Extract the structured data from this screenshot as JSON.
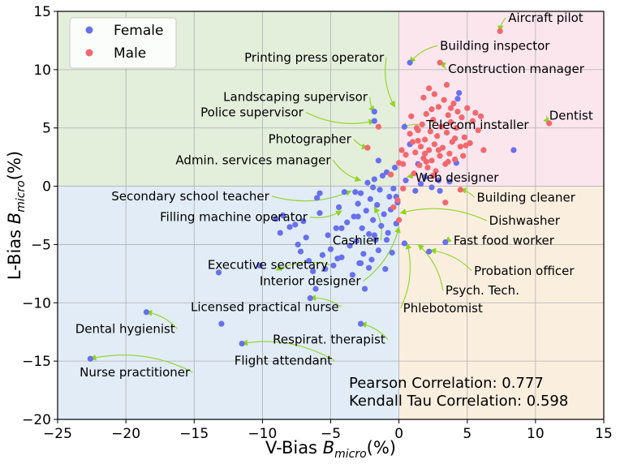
{
  "chart_data": {
    "type": "scatter",
    "xlabel": {
      "prefix": "V-Bias  ",
      "sym": "B",
      "sub": "micro",
      "suffix": "(%)"
    },
    "ylabel": {
      "prefix": "L-Bias  ",
      "sym": "B",
      "sub": "micro",
      "suffix": "(%)"
    },
    "xlim": [
      -25,
      15
    ],
    "ylim": [
      -20,
      15
    ],
    "xticks": [
      -25,
      -20,
      -15,
      -10,
      -5,
      0,
      5,
      10,
      15
    ],
    "yticks": [
      -20,
      -15,
      -10,
      -5,
      0,
      5,
      10,
      15
    ],
    "xtick_labels": [
      "−25",
      "−20",
      "−15",
      "−10",
      "−5",
      "0",
      "5",
      "10",
      "15"
    ],
    "ytick_labels": [
      "−20",
      "−15",
      "−10",
      "−5",
      "0",
      "5",
      "10",
      "15"
    ],
    "grid": true,
    "legend_position": "top-left",
    "quadrants": [
      {
        "x": [
          -25,
          0
        ],
        "y": [
          0,
          15
        ],
        "color": "#e3eedb"
      },
      {
        "x": [
          0,
          15
        ],
        "y": [
          0,
          15
        ],
        "color": "#fbe6ee"
      },
      {
        "x": [
          -25,
          0
        ],
        "y": [
          -20,
          0
        ],
        "color": "#e1ecf7"
      },
      {
        "x": [
          0,
          15
        ],
        "y": [
          -20,
          0
        ],
        "color": "#faeedf"
      }
    ],
    "stats": [
      "Pearson Correlation: 0.777",
      "Kendall Tau Correlation: 0.598"
    ],
    "series": [
      {
        "name": "Female",
        "color": "#6870ec",
        "points": [
          [
            -22.6,
            -14.8
          ],
          [
            -18.5,
            -10.8
          ],
          [
            -13.0,
            -11.8
          ],
          [
            -13.2,
            -7.4
          ],
          [
            -11.5,
            -13.5
          ],
          [
            -10.2,
            -6.8
          ],
          [
            -9.0,
            -2.8
          ],
          [
            -8.7,
            -4.0
          ],
          [
            -8.5,
            -2.5
          ],
          [
            -8.0,
            -3.5
          ],
          [
            -7.6,
            -3.3
          ],
          [
            -7.4,
            -5.0
          ],
          [
            -7.2,
            -5.6
          ],
          [
            -7.0,
            -3.0
          ],
          [
            -6.8,
            -4.4
          ],
          [
            -6.6,
            -6.4
          ],
          [
            -6.3,
            -7.3
          ],
          [
            -6.1,
            -8.8
          ],
          [
            -6.0,
            -1.0
          ],
          [
            -5.8,
            -2.3
          ],
          [
            -5.6,
            -5.9
          ],
          [
            -5.4,
            -7.1
          ],
          [
            -5.2,
            -4.2
          ],
          [
            -5.0,
            -5.4
          ],
          [
            -4.8,
            -6.8
          ],
          [
            -4.6,
            -3.6
          ],
          [
            -4.4,
            -1.8
          ],
          [
            -4.2,
            -6.1
          ],
          [
            -4.0,
            -0.5
          ],
          [
            -3.8,
            -3.1
          ],
          [
            -3.6,
            -5.1
          ],
          [
            -3.4,
            -7.6
          ],
          [
            -3.3,
            -2.6
          ],
          [
            -3.1,
            -4.7
          ],
          [
            -3.0,
            -1.5
          ],
          [
            -2.9,
            -6.6
          ],
          [
            -2.8,
            -0.6
          ],
          [
            -2.7,
            -3.6
          ],
          [
            -2.6,
            -5.8
          ],
          [
            -2.5,
            -8.8
          ],
          [
            -2.4,
            -2.1
          ],
          [
            -2.3,
            0.3
          ],
          [
            -2.2,
            -4.1
          ],
          [
            -2.1,
            -1.1
          ],
          [
            -2.0,
            -6.3
          ],
          [
            -1.9,
            -2.9
          ],
          [
            -1.8,
            0.6
          ],
          [
            -1.7,
            -4.6
          ],
          [
            -1.6,
            -1.6
          ],
          [
            -1.5,
            -5.5
          ],
          [
            -1.4,
            -0.3
          ],
          [
            -1.3,
            -3.4
          ],
          [
            -1.2,
            0.9
          ],
          [
            -1.1,
            -2.4
          ],
          [
            -1.0,
            -7.1
          ],
          [
            -0.9,
            1.2
          ],
          [
            -0.8,
            -4.0
          ],
          [
            -0.7,
            -0.9
          ],
          [
            -0.6,
            -2.0
          ],
          [
            -0.5,
            -5.7
          ],
          [
            -0.4,
            -0.2
          ],
          [
            -0.3,
            1.6
          ],
          [
            -0.2,
            -3.2
          ],
          [
            -0.1,
            -1.4
          ],
          [
            -6.5,
            -9.6
          ],
          [
            -2.8,
            -11.8
          ],
          [
            -3.2,
            -0.5
          ],
          [
            -5.8,
            -0.6
          ],
          [
            -2.8,
            -6.6
          ],
          [
            -4.2,
            -3.6
          ],
          [
            -3.0,
            -2.6
          ],
          [
            -1.8,
            -4.2
          ],
          [
            -4.5,
            -6.2
          ],
          [
            -0.9,
            -4.6
          ],
          [
            -1.9,
            -0.1
          ],
          [
            -2.2,
            -7.0
          ],
          [
            -1.5,
            2.2
          ],
          [
            -0.2,
            -0.9
          ],
          [
            0.8,
            10.6
          ],
          [
            -1.8,
            6.4
          ],
          [
            -1.8,
            5.6
          ],
          [
            0.4,
            -4.9
          ],
          [
            0.5,
            0.5
          ],
          [
            1.2,
            -0.4
          ],
          [
            1.6,
            0.2
          ],
          [
            1.9,
            0.8
          ],
          [
            2.4,
            -0.1
          ],
          [
            2.2,
            -5.6
          ],
          [
            3.4,
            -4.8
          ],
          [
            3.7,
            0.4
          ],
          [
            4.2,
            2.0
          ],
          [
            4.4,
            8.0
          ],
          [
            4.3,
            7.5
          ],
          [
            8.4,
            3.1
          ],
          [
            0.8,
            3.6
          ],
          [
            0.4,
            5.1
          ],
          [
            1.4,
            1.9
          ],
          [
            3.0,
            -0.4
          ],
          [
            2.9,
            0.5
          ]
        ]
      },
      {
        "name": "Male",
        "color": "#f2686e",
        "points": [
          [
            7.4,
            13.3
          ],
          [
            3.0,
            10.6
          ],
          [
            11.0,
            5.4
          ],
          [
            -2.3,
            3.3
          ],
          [
            -1.5,
            5.1
          ],
          [
            0.2,
            3.1
          ],
          [
            0.5,
            2.7
          ],
          [
            0.8,
            4.5
          ],
          [
            1.0,
            3.8
          ],
          [
            1.2,
            2.9
          ],
          [
            1.4,
            4.8
          ],
          [
            1.5,
            1.8
          ],
          [
            1.6,
            3.4
          ],
          [
            1.7,
            5.3
          ],
          [
            1.8,
            2.4
          ],
          [
            1.9,
            4.0
          ],
          [
            2.0,
            6.2
          ],
          [
            2.1,
            1.6
          ],
          [
            2.2,
            3.1
          ],
          [
            2.3,
            4.7
          ],
          [
            2.4,
            2.2
          ],
          [
            2.5,
            5.7
          ],
          [
            2.6,
            3.6
          ],
          [
            2.7,
            1.3
          ],
          [
            2.8,
            4.3
          ],
          [
            2.9,
            6.8
          ],
          [
            3.0,
            2.6
          ],
          [
            3.1,
            5.1
          ],
          [
            3.2,
            3.3
          ],
          [
            3.3,
            7.4
          ],
          [
            3.4,
            1.9
          ],
          [
            3.5,
            4.6
          ],
          [
            3.6,
            6.1
          ],
          [
            3.7,
            2.8
          ],
          [
            3.8,
            5.5
          ],
          [
            3.9,
            3.8
          ],
          [
            4.0,
            7.1
          ],
          [
            4.1,
            2.3
          ],
          [
            4.2,
            5.0
          ],
          [
            4.3,
            6.4
          ],
          [
            4.5,
            3.4
          ],
          [
            4.6,
            5.9
          ],
          [
            4.8,
            4.2
          ],
          [
            5.0,
            6.7
          ],
          [
            5.2,
            3.7
          ],
          [
            5.4,
            5.6
          ],
          [
            5.6,
            6.3
          ],
          [
            5.8,
            4.8
          ],
          [
            6.0,
            6.0
          ],
          [
            6.2,
            3.1
          ],
          [
            4.5,
            -0.3
          ],
          [
            3.4,
            -1.4
          ],
          [
            0.0,
            -2.9
          ],
          [
            -0.4,
            -1.8
          ],
          [
            1.8,
            7.6
          ],
          [
            2.6,
            7.9
          ],
          [
            3.8,
            6.7
          ],
          [
            1.1,
            1.1
          ],
          [
            1.9,
            2.8
          ],
          [
            2.5,
            0.9
          ],
          [
            0.3,
            1.9
          ],
          [
            0.9,
            6.0
          ],
          [
            1.3,
            5.0
          ],
          [
            2.2,
            8.4
          ],
          [
            3.5,
            8.7
          ],
          [
            1.4,
            3.9
          ],
          [
            2.0,
            2.1
          ],
          [
            2.9,
            3.1
          ],
          [
            3.6,
            2.1
          ],
          [
            4.7,
            2.6
          ],
          [
            2.4,
            6.6
          ],
          [
            -0.6,
            1.0
          ],
          [
            -0.1,
            -1.2
          ],
          [
            0.3,
            -0.2
          ],
          [
            0.0,
            2.0
          ],
          [
            4.9,
            3.5
          ],
          [
            4.1,
            4.1
          ]
        ]
      }
    ],
    "annotations": [
      {
        "text": "Aircraft pilot",
        "point": [
          7.4,
          13.3
        ],
        "text_pos": [
          8.0,
          14.1
        ],
        "anchor": "start"
      },
      {
        "text": "Building inspector",
        "point": [
          0.8,
          10.6
        ],
        "text_pos": [
          3.0,
          11.7
        ],
        "anchor": "start"
      },
      {
        "text": "Construction manager",
        "point": [
          3.0,
          10.6
        ],
        "text_pos": [
          3.6,
          9.7
        ],
        "anchor": "start"
      },
      {
        "text": "Printing press operator",
        "point": [
          -0.3,
          6.8
        ],
        "text_pos": [
          -1.1,
          10.7
        ],
        "anchor": "end"
      },
      {
        "text": "Landscaping supervisor",
        "point": [
          -1.8,
          6.4
        ],
        "text_pos": [
          -2.3,
          7.3
        ],
        "anchor": "end"
      },
      {
        "text": "Police supervisor",
        "point": [
          -1.8,
          5.6
        ],
        "text_pos": [
          -7.0,
          6.0
        ],
        "anchor": "end"
      },
      {
        "text": "Dentist",
        "point": [
          11.0,
          5.4
        ],
        "text_pos": [
          11.0,
          5.7
        ],
        "anchor": "start"
      },
      {
        "text": "Telecom installer",
        "point": [
          0.2,
          5.0
        ],
        "text_pos": [
          2.0,
          4.9
        ],
        "anchor": "start"
      },
      {
        "text": "Photographer",
        "point": [
          -2.3,
          3.3
        ],
        "text_pos": [
          -3.5,
          3.7
        ],
        "anchor": "end"
      },
      {
        "text": "Admin. services manager",
        "point": [
          -2.8,
          0.5
        ],
        "text_pos": [
          -5.0,
          1.9
        ],
        "anchor": "end"
      },
      {
        "text": "Web designer",
        "point": [
          0.6,
          0.8
        ],
        "text_pos": [
          1.2,
          0.4
        ],
        "anchor": "start"
      },
      {
        "text": "Secondary school teacher",
        "point": [
          -3.5,
          -0.4
        ],
        "text_pos": [
          -9.5,
          -1.2
        ],
        "anchor": "end"
      },
      {
        "text": "Building cleaner",
        "point": [
          4.5,
          -0.3
        ],
        "text_pos": [
          5.7,
          -1.3
        ],
        "anchor": "start"
      },
      {
        "text": "Filling machine operator",
        "point": [
          -4.2,
          -2.1
        ],
        "text_pos": [
          -6.7,
          -3.0
        ],
        "anchor": "end"
      },
      {
        "text": "Dishwasher",
        "point": [
          0.1,
          -2.3
        ],
        "text_pos": [
          6.6,
          -3.3
        ],
        "anchor": "start"
      },
      {
        "text": "Cashier",
        "point": [
          -1.8,
          -1.8
        ],
        "text_pos": [
          -1.5,
          -5.0
        ],
        "anchor": "end"
      },
      {
        "text": "Fast food worker",
        "point": [
          3.4,
          -4.8
        ],
        "text_pos": [
          4.0,
          -5.0
        ],
        "anchor": "start"
      },
      {
        "text": "Executive secretary",
        "point": [
          -9.0,
          -7.2
        ],
        "text_pos": [
          -5.2,
          -7.1
        ],
        "anchor": "end"
      },
      {
        "text": "Probation officer",
        "point": [
          2.3,
          -5.5
        ],
        "text_pos": [
          5.5,
          -7.6
        ],
        "anchor": "start"
      },
      {
        "text": "Interior designer",
        "point": [
          0.0,
          -3.5
        ],
        "text_pos": [
          -2.8,
          -8.5
        ],
        "anchor": "end"
      },
      {
        "text": "Psych. Tech.",
        "point": [
          1.4,
          -5.0
        ],
        "text_pos": [
          3.4,
          -9.3
        ],
        "anchor": "start"
      },
      {
        "text": "Licensed practical nurse",
        "point": [
          -6.5,
          -9.6
        ],
        "text_pos": [
          -4.4,
          -10.7
        ],
        "anchor": "end"
      },
      {
        "text": "Phlebotomist",
        "point": [
          0.6,
          -4.9
        ],
        "text_pos": [
          0.3,
          -10.8
        ],
        "anchor": "start"
      },
      {
        "text": "Dental hygienist",
        "point": [
          -18.5,
          -10.8
        ],
        "text_pos": [
          -16.4,
          -12.6
        ],
        "anchor": "end"
      },
      {
        "text": "Respirat. therapist",
        "point": [
          -2.8,
          -11.8
        ],
        "text_pos": [
          -1.0,
          -13.5
        ],
        "anchor": "end"
      },
      {
        "text": "Flight attendant",
        "point": [
          -11.5,
          -13.5
        ],
        "text_pos": [
          -4.9,
          -15.3
        ],
        "anchor": "end"
      },
      {
        "text": "Nurse practitioner",
        "point": [
          -22.6,
          -14.8
        ],
        "text_pos": [
          -15.3,
          -16.3
        ],
        "anchor": "end"
      }
    ]
  }
}
